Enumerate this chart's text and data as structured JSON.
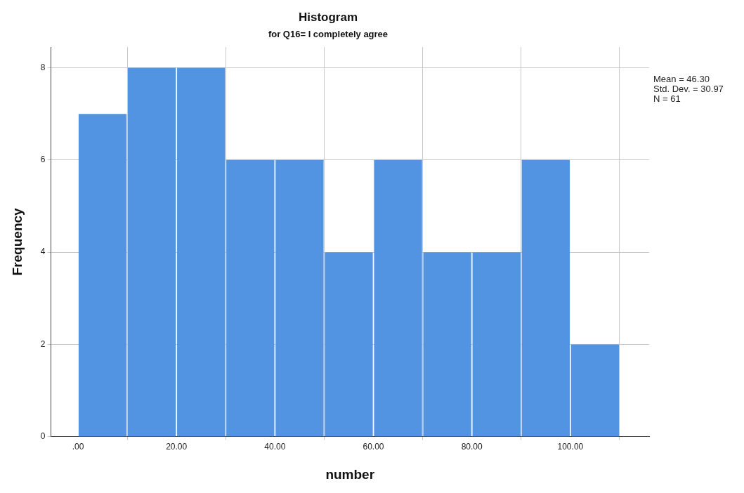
{
  "chart_data": {
    "type": "histogram",
    "title": "Histogram",
    "subtitle": "for Q16= I completely agree",
    "xlabel": "number",
    "ylabel": "Frequency",
    "bins": [
      0,
      10,
      20,
      30,
      40,
      50,
      60,
      70,
      80,
      90,
      100,
      110
    ],
    "values": [
      7,
      8,
      8,
      6,
      6,
      4,
      6,
      4,
      4,
      6,
      2
    ],
    "color": "#5294e2",
    "xlim": [
      -5.5,
      116
    ],
    "xticks": [
      {
        "value": 0,
        "label": ".00"
      },
      {
        "value": 20,
        "label": "20.00"
      },
      {
        "value": 40,
        "label": "40.00"
      },
      {
        "value": 60,
        "label": "60.00"
      },
      {
        "value": 80,
        "label": "80.00"
      },
      {
        "value": 100,
        "label": "100.00"
      }
    ],
    "ylim": [
      0,
      8.45
    ],
    "yticks": [
      0,
      2,
      4,
      6,
      8
    ],
    "grid": true,
    "legend": false,
    "annotations": [
      "Mean = 46.30",
      "Std. Dev. = 30.97",
      "N = 61"
    ]
  }
}
